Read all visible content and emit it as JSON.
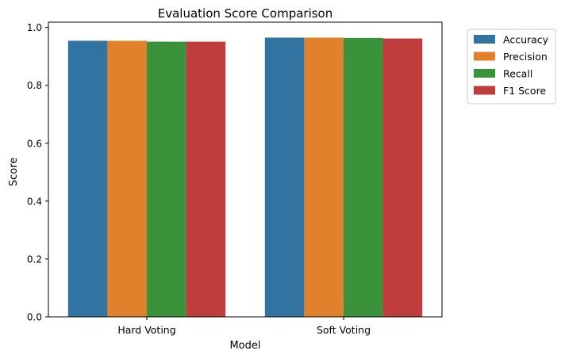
{
  "chart_data": {
    "type": "bar",
    "title": "Evaluation Score Comparison",
    "xlabel": "Model",
    "ylabel": "Score",
    "categories": [
      "Hard Voting",
      "Soft Voting"
    ],
    "ylim": [
      0,
      1.0
    ],
    "yticks": [
      "0.0",
      "0.2",
      "0.4",
      "0.6",
      "0.8",
      "1.0"
    ],
    "grid": false,
    "legend_position": "outside-top-right",
    "series": [
      {
        "name": "Accuracy",
        "color": "#3274a1",
        "values": [
          0.954,
          0.965
        ]
      },
      {
        "name": "Precision",
        "color": "#e1812c",
        "values": [
          0.954,
          0.965
        ]
      },
      {
        "name": "Recall",
        "color": "#3a923a",
        "values": [
          0.951,
          0.964
        ]
      },
      {
        "name": "F1 Score",
        "color": "#c03d3e",
        "values": [
          0.951,
          0.962
        ]
      }
    ]
  }
}
